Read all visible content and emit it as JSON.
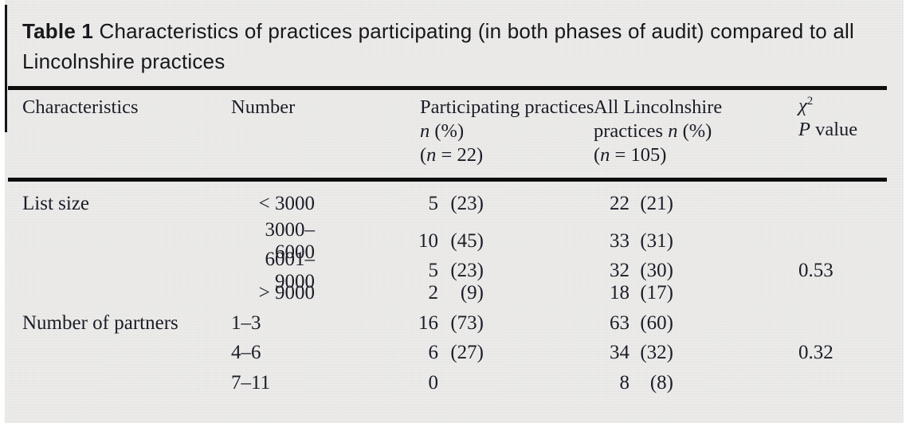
{
  "title": {
    "label": "Table 1",
    "caption": " Characteristics of practices participating (in both phases of audit) compared to all Lincolnshire practices"
  },
  "accent_colors": {
    "panel_background": "#e9e8e6",
    "rule_color": "#0d0d0d",
    "text_color": "#1c1c28"
  },
  "header": {
    "c1": "Characteristics",
    "c2": "Number",
    "c3": {
      "l1": "Participating practices",
      "l2_it": "n",
      "l2_rest": " (%)",
      "l3_pre": "(",
      "l3_it": "n",
      "l3_rest": " = 22)"
    },
    "c4": {
      "l1": "All Lincolnshire",
      "l2_pre": "practices ",
      "l2_it": "n",
      "l2_rest": " (%)",
      "l3_pre": "(",
      "l3_it": "n",
      "l3_rest": " = 105)"
    },
    "c5": {
      "chi": "χ",
      "chi_sup": "2",
      "p_it": "P",
      "p_rest": " value"
    }
  },
  "table": {
    "rows": [
      {
        "group": "List size",
        "number": "< 3000",
        "num_align": "right",
        "p_count": "5",
        "p_pct": "(23)",
        "a_count": "22",
        "a_pct": "(21)",
        "pval": ""
      },
      {
        "group": "",
        "number": "3000–6000",
        "num_align": "right",
        "p_count": "10",
        "p_pct": "(45)",
        "a_count": "33",
        "a_pct": "(31)",
        "pval": ""
      },
      {
        "group": "",
        "number": "6001–9000",
        "num_align": "right",
        "p_count": "5",
        "p_pct": "(23)",
        "a_count": "32",
        "a_pct": "(30)",
        "pval": "0.53"
      },
      {
        "group": "",
        "number": "> 9000",
        "num_align": "right",
        "p_count": "2",
        "p_pct": "(9)",
        "a_count": "18",
        "a_pct": "(17)",
        "pval": ""
      },
      {
        "group": "Number of partners",
        "number": "1–3",
        "num_align": "left",
        "p_count": "16",
        "p_pct": "(73)",
        "a_count": "63",
        "a_pct": "(60)",
        "pval": ""
      },
      {
        "group": "",
        "number": "4–6",
        "num_align": "left",
        "p_count": "6",
        "p_pct": "(27)",
        "a_count": "34",
        "a_pct": "(32)",
        "pval": "0.32"
      },
      {
        "group": "",
        "number": "7–11",
        "num_align": "left",
        "p_count": "0",
        "p_pct": "",
        "a_count": "8",
        "a_pct": "(8)",
        "pval": ""
      }
    ]
  }
}
